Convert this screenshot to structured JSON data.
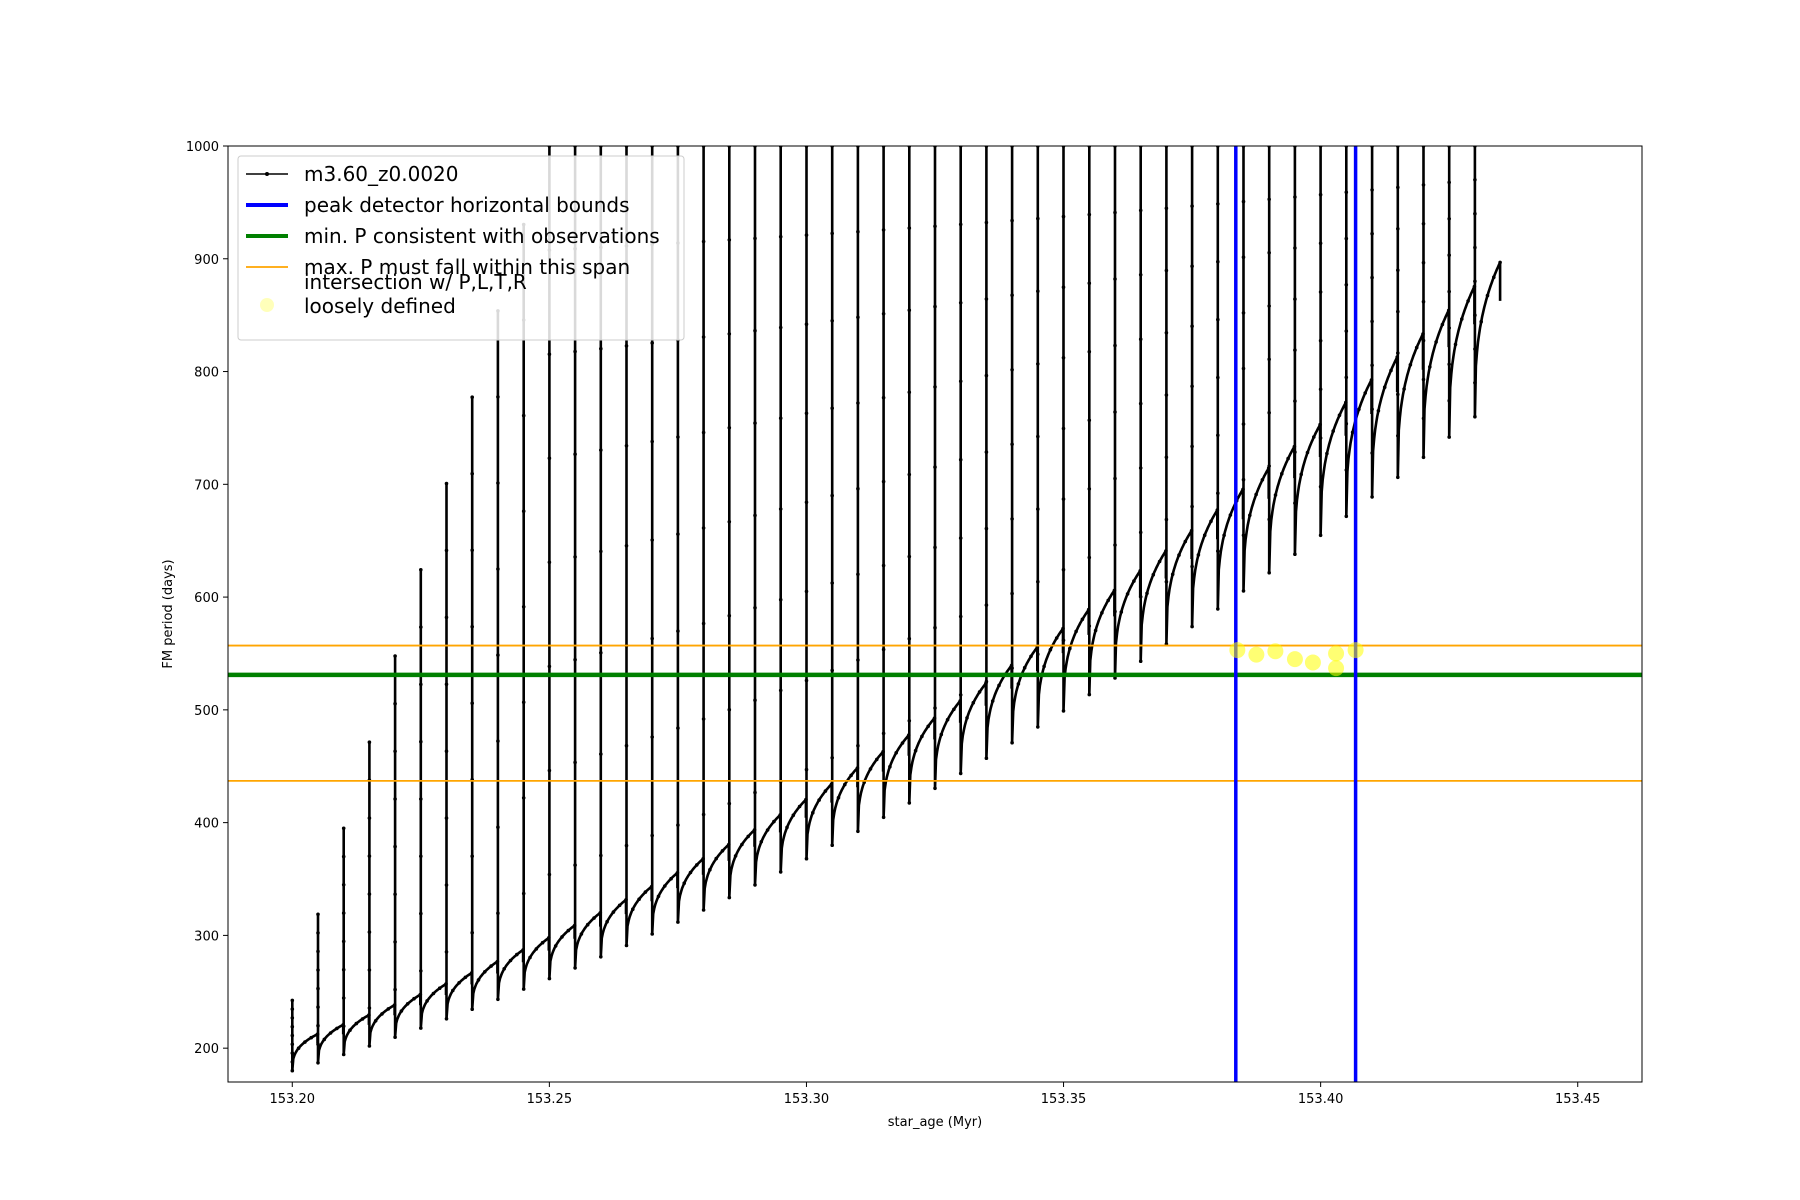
{
  "chart_data": {
    "type": "line",
    "title": "",
    "xlabel": "star_age (Myr)",
    "ylabel": "FM period (days)",
    "xlim": [
      153.1875,
      153.4625
    ],
    "ylim": [
      170,
      1000
    ],
    "xticks": [
      153.2,
      153.25,
      153.3,
      153.35,
      153.4,
      153.45
    ],
    "yticks": [
      200,
      300,
      400,
      500,
      600,
      700,
      800,
      900,
      1000
    ],
    "xtick_labels": [
      "153.20",
      "153.25",
      "153.30",
      "153.35",
      "153.40",
      "153.45"
    ],
    "ytick_labels": [
      "200",
      "300",
      "400",
      "500",
      "600",
      "700",
      "800",
      "900",
      "1000"
    ],
    "grid": false,
    "legend_position": "top-left",
    "series": [
      {
        "name": "m3.60_z0.0020",
        "kind": "line-with-markers",
        "color": "#000000",
        "x_start": 153.2,
        "x_end": 153.437,
        "pulse_count": 47,
        "pulse_spacing": 0.005,
        "baseline_start": 180,
        "baseline_end": 760,
        "baseline_growth": "quadratic",
        "spike_top_start": 210,
        "spike_top_slope": 15000,
        "spike_cap": 1000
      },
      {
        "name": "peak detector horizontal bounds",
        "kind": "vertical-lines",
        "color": "#0000ff",
        "x": [
          153.3835,
          153.4068
        ]
      },
      {
        "name": "min. P consistent with observations",
        "kind": "horizontal-line",
        "color": "#008000",
        "y": 531
      },
      {
        "name": "max. P must fall within this span",
        "kind": "horizontal-lines",
        "color": "#ffa500",
        "y": [
          437,
          557
        ]
      },
      {
        "name": "intersection w/ P,L,T,R\nloosely defined",
        "kind": "scatter",
        "color": "#ffff00",
        "points": [
          {
            "x": 153.3838,
            "y": 553
          },
          {
            "x": 153.3875,
            "y": 549
          },
          {
            "x": 153.3912,
            "y": 552
          },
          {
            "x": 153.395,
            "y": 545
          },
          {
            "x": 153.3985,
            "y": 542
          },
          {
            "x": 153.403,
            "y": 537
          },
          {
            "x": 153.403,
            "y": 550
          },
          {
            "x": 153.4068,
            "y": 553
          }
        ]
      }
    ],
    "legend": [
      {
        "label": "m3.60_z0.0020",
        "color": "#000000",
        "marker": "line-dot"
      },
      {
        "label": "peak detector horizontal bounds",
        "color": "#0000ff",
        "marker": "line"
      },
      {
        "label": "min. P consistent with observations",
        "color": "#008000",
        "marker": "line"
      },
      {
        "label": "max. P must fall within this span",
        "color": "#ffa500",
        "marker": "thin-line"
      },
      {
        "label": "intersection w/ P,L,T,R",
        "label2": "loosely defined",
        "color": "#ffff66",
        "marker": "dot"
      }
    ]
  }
}
